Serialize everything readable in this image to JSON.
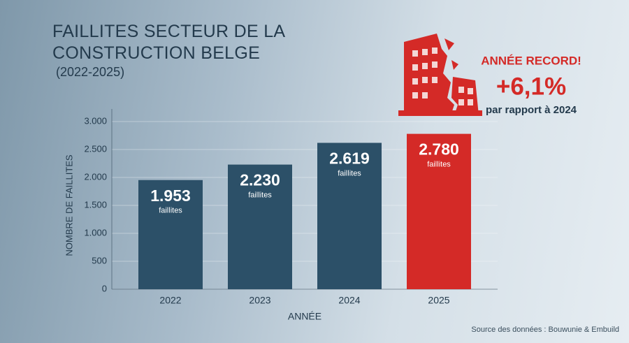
{
  "chart_data": {
    "type": "bar",
    "title": "FAILLITES SECTEUR DE LA CONSTRUCTION BELGE",
    "subtitle": "(2022-2025)",
    "y_label": "NOMBRE DE FAILLITES",
    "x_label": "ANNÉE",
    "categories": [
      "2022",
      "2023",
      "2024",
      "2025"
    ],
    "values": [
      1953,
      2230,
      2619,
      2780
    ],
    "value_labels": [
      "1.953",
      "2.230",
      "2.619",
      "2.780"
    ],
    "bar_unit_label": "faillites",
    "colors": [
      "#2c5068",
      "#2c5068",
      "#2c5068",
      "#d42a27"
    ],
    "ylim": [
      0,
      3000
    ],
    "yticks": [
      0,
      500,
      {
        "value": 1000,
        "label": "1.000"
      },
      {
        "value": 1500,
        "label": "1.500"
      },
      {
        "value": 2000,
        "label": "2.000"
      },
      {
        "value": 2500,
        "label": "2.500"
      },
      {
        "value": 3000,
        "label": "3.000"
      }
    ],
    "grid": true,
    "annotation": {
      "headline": "ANNÉE RECORD!",
      "change": "+6,1%",
      "comparison": "par rapport à 2024"
    },
    "source": "Source des données : Bouwunie & Embuild"
  }
}
